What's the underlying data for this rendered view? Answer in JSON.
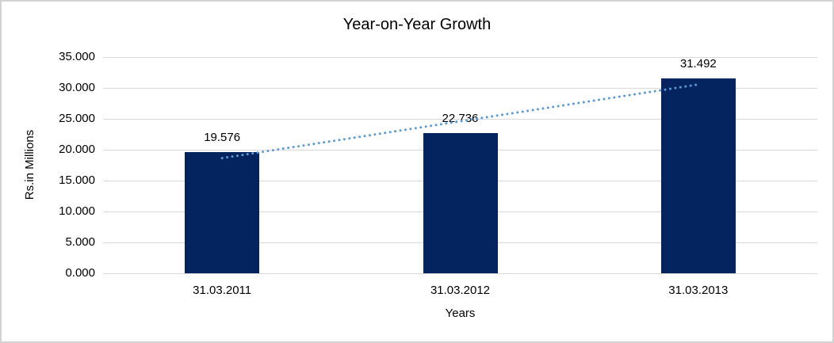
{
  "chart": {
    "background": "#ffffff",
    "border_color": "#d2d2d2"
  },
  "chart_data": {
    "type": "bar",
    "title": "Year-on-Year Growth",
    "xlabel": "Years",
    "ylabel": "Rs.in Millions",
    "categories": [
      "31.03.2011",
      "31.03.2012",
      "31.03.2013"
    ],
    "values": [
      19.576,
      22.736,
      31.492
    ],
    "data_labels": [
      "19.576",
      "22.736",
      "31.492"
    ],
    "y_ticks": [
      "0.000",
      "5.000",
      "10.000",
      "15.000",
      "20.000",
      "25.000",
      "30.000",
      "35.000"
    ],
    "ylim": [
      0,
      35
    ],
    "y_tick_step": 5,
    "grid": true,
    "legend_position": "none",
    "bar_color": "#03245f",
    "gridline_color": "#d9d9d9",
    "text_color": "#000000",
    "trendline": {
      "type": "linear",
      "style": "dotted",
      "color": "#5b9bd5"
    }
  }
}
